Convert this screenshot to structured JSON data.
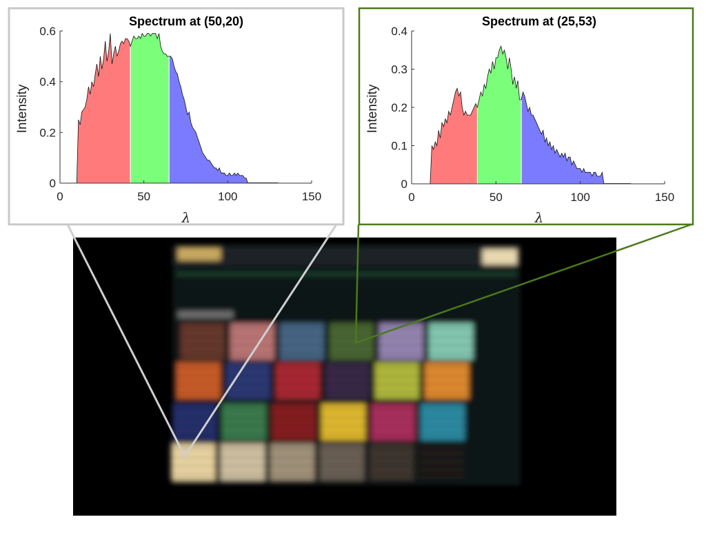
{
  "chart_data": [
    {
      "type": "area",
      "title": "Spectrum at (50,20)",
      "xlabel": "λ",
      "ylabel": "Intensity",
      "xlim": [
        0,
        150
      ],
      "ylim": [
        0,
        0.6
      ],
      "xticks": [
        "0",
        "50",
        "100",
        "150"
      ],
      "yticks": [
        "0",
        "0.2",
        "0.4",
        "0.6"
      ],
      "frame_color": "#c9c9c9",
      "band_edges": [
        42,
        65
      ],
      "band_colors": [
        "#ff7b7b",
        "#7bff7b",
        "#7b7bff"
      ],
      "x": [
        10,
        11,
        12,
        13,
        14,
        15,
        16,
        17,
        18,
        19,
        20,
        21,
        22,
        23,
        24,
        25,
        26,
        27,
        28,
        29,
        30,
        31,
        32,
        33,
        34,
        35,
        36,
        37,
        38,
        39,
        40,
        41,
        42,
        43,
        44,
        45,
        46,
        47,
        48,
        49,
        50,
        51,
        52,
        53,
        54,
        55,
        56,
        57,
        58,
        59,
        60,
        61,
        62,
        63,
        64,
        65,
        66,
        67,
        68,
        69,
        70,
        71,
        72,
        73,
        74,
        75,
        76,
        77,
        78,
        79,
        80,
        81,
        82,
        83,
        84,
        85,
        86,
        87,
        88,
        89,
        90,
        91,
        92,
        93,
        94,
        95,
        96,
        97,
        98,
        99,
        100,
        101,
        102,
        103,
        104,
        105,
        106,
        107,
        108,
        109,
        110,
        111,
        112
      ],
      "values": [
        0.0,
        0.25,
        0.23,
        0.28,
        0.29,
        0.3,
        0.33,
        0.38,
        0.35,
        0.4,
        0.38,
        0.43,
        0.47,
        0.42,
        0.5,
        0.45,
        0.49,
        0.56,
        0.48,
        0.52,
        0.59,
        0.47,
        0.51,
        0.54,
        0.5,
        0.52,
        0.55,
        0.56,
        0.55,
        0.57,
        0.57,
        0.56,
        0.54,
        0.56,
        0.58,
        0.57,
        0.57,
        0.58,
        0.57,
        0.59,
        0.58,
        0.58,
        0.59,
        0.59,
        0.58,
        0.59,
        0.59,
        0.59,
        0.57,
        0.59,
        0.54,
        0.52,
        0.51,
        0.51,
        0.5,
        0.5,
        0.5,
        0.49,
        0.46,
        0.44,
        0.43,
        0.4,
        0.38,
        0.35,
        0.33,
        0.3,
        0.27,
        0.28,
        0.24,
        0.22,
        0.21,
        0.2,
        0.18,
        0.16,
        0.14,
        0.12,
        0.11,
        0.1,
        0.09,
        0.09,
        0.08,
        0.07,
        0.06,
        0.06,
        0.05,
        0.06,
        0.04,
        0.04,
        0.04,
        0.03,
        0.03,
        0.04,
        0.03,
        0.03,
        0.04,
        0.03,
        0.04,
        0.03,
        0.03,
        0.03,
        0.02,
        0.02,
        0.0
      ]
    },
    {
      "type": "area",
      "title": "Spectrum at (25,53)",
      "xlabel": "λ",
      "ylabel": "Intensity",
      "xlim": [
        0,
        150
      ],
      "ylim": [
        0,
        0.4
      ],
      "xticks": [
        "0",
        "50",
        "100",
        "150"
      ],
      "yticks": [
        "0",
        "0.1",
        "0.2",
        "0.3",
        "0.4"
      ],
      "frame_color": "#4a7a1a",
      "band_edges": [
        39,
        65
      ],
      "band_colors": [
        "#ff7b7b",
        "#7bff7b",
        "#7b7bff"
      ],
      "x": [
        11,
        12,
        13,
        14,
        15,
        16,
        17,
        18,
        19,
        20,
        21,
        22,
        23,
        24,
        25,
        26,
        27,
        28,
        29,
        30,
        31,
        32,
        33,
        34,
        35,
        36,
        37,
        38,
        39,
        40,
        41,
        42,
        43,
        44,
        45,
        46,
        47,
        48,
        49,
        50,
        51,
        52,
        53,
        54,
        55,
        56,
        57,
        58,
        59,
        60,
        61,
        62,
        63,
        64,
        65,
        66,
        67,
        68,
        69,
        70,
        71,
        72,
        73,
        74,
        75,
        76,
        77,
        78,
        79,
        80,
        81,
        82,
        83,
        84,
        85,
        86,
        87,
        88,
        89,
        90,
        91,
        92,
        93,
        94,
        95,
        96,
        97,
        98,
        99,
        100,
        101,
        102,
        103,
        104,
        105,
        106,
        107,
        108,
        109,
        110,
        111,
        112,
        113,
        114
      ],
      "values": [
        0.0,
        0.1,
        0.09,
        0.11,
        0.1,
        0.14,
        0.12,
        0.16,
        0.15,
        0.17,
        0.16,
        0.19,
        0.18,
        0.2,
        0.22,
        0.24,
        0.25,
        0.23,
        0.24,
        0.2,
        0.18,
        0.19,
        0.18,
        0.18,
        0.18,
        0.19,
        0.2,
        0.21,
        0.2,
        0.22,
        0.24,
        0.23,
        0.26,
        0.25,
        0.28,
        0.3,
        0.29,
        0.32,
        0.3,
        0.33,
        0.33,
        0.35,
        0.36,
        0.34,
        0.35,
        0.33,
        0.3,
        0.33,
        0.3,
        0.26,
        0.28,
        0.25,
        0.27,
        0.22,
        0.22,
        0.24,
        0.23,
        0.21,
        0.19,
        0.2,
        0.18,
        0.18,
        0.17,
        0.16,
        0.15,
        0.14,
        0.13,
        0.14,
        0.11,
        0.12,
        0.1,
        0.11,
        0.09,
        0.1,
        0.08,
        0.09,
        0.08,
        0.07,
        0.08,
        0.07,
        0.08,
        0.06,
        0.07,
        0.07,
        0.05,
        0.06,
        0.05,
        0.04,
        0.04,
        0.04,
        0.03,
        0.04,
        0.03,
        0.03,
        0.03,
        0.03,
        0.02,
        0.03,
        0.03,
        0.02,
        0.02,
        0.02,
        0.03,
        0.0
      ]
    }
  ],
  "colors": {
    "left_frame": "#c9c9c9",
    "right_frame": "#4a7a1a",
    "image_background": "#000000"
  },
  "image": {
    "chart_rows": [
      [
        "#6b3a2e",
        "#c27a7a",
        "#4a6a8a",
        "#4e6a36",
        "#9a8ab8",
        "#8ad0b8"
      ],
      [
        "#d0602a",
        "#2e3a78",
        "#b02a36",
        "#3a2a4a",
        "#b8c040",
        "#e89030"
      ],
      [
        "#283070",
        "#3e8050",
        "#8a1e24",
        "#e8c030",
        "#b03060",
        "#2e90a8"
      ],
      [
        "#f2dca8",
        "#d8c8a8",
        "#a89880",
        "#6e6458",
        "#403830",
        "#1e1a18"
      ]
    ]
  }
}
